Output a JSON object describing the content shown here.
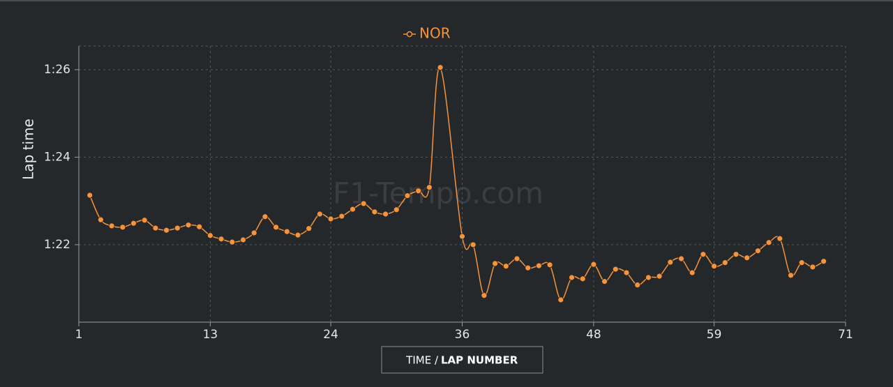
{
  "chart_data": {
    "type": "line",
    "watermark": "F1-Tempo.com",
    "ylabel": "Lap time",
    "xlabel_prefix": "TIME /",
    "xlabel": "LAP NUMBER",
    "xlim": [
      1,
      71
    ],
    "xticks": [
      1,
      13,
      24,
      36,
      48,
      59,
      71
    ],
    "ylim": [
      80.23,
      86.54
    ],
    "yticks": [
      {
        "value": 82,
        "label": "1:22"
      },
      {
        "value": 84,
        "label": "1:24"
      },
      {
        "value": 86,
        "label": "1:26"
      }
    ],
    "grid": true,
    "series": [
      {
        "name": "NOR",
        "color": "#f7933a",
        "x": [
          2,
          3,
          4,
          5,
          6,
          7,
          8,
          9,
          10,
          11,
          12,
          13,
          14,
          15,
          16,
          17,
          18,
          19,
          20,
          21,
          22,
          23,
          24,
          25,
          26,
          27,
          28,
          29,
          30,
          31,
          32,
          33,
          34,
          36,
          37,
          38,
          39,
          40,
          41,
          42,
          43,
          44,
          45,
          46,
          47,
          48,
          49,
          50,
          51,
          52,
          53,
          54,
          55,
          56,
          57,
          58,
          59,
          60,
          61,
          62,
          63,
          64,
          65,
          66,
          67,
          68,
          69
        ],
        "values": [
          83.13,
          82.57,
          82.43,
          82.4,
          82.49,
          82.56,
          82.38,
          82.33,
          82.38,
          82.45,
          82.41,
          82.21,
          82.13,
          82.06,
          82.11,
          82.27,
          82.64,
          82.4,
          82.3,
          82.22,
          82.37,
          82.7,
          82.59,
          82.65,
          82.81,
          82.94,
          82.75,
          82.7,
          82.8,
          83.12,
          83.23,
          83.31,
          86.05,
          82.19,
          82.0,
          80.84,
          81.57,
          81.51,
          81.68,
          81.47,
          81.52,
          81.54,
          80.74,
          81.25,
          81.22,
          81.55,
          81.16,
          81.44,
          81.36,
          81.08,
          81.25,
          81.28,
          81.6,
          81.68,
          81.36,
          81.78,
          81.51,
          81.59,
          81.78,
          81.7,
          81.86,
          82.05,
          82.14,
          81.3,
          81.59,
          81.49,
          81.62
        ]
      }
    ]
  }
}
